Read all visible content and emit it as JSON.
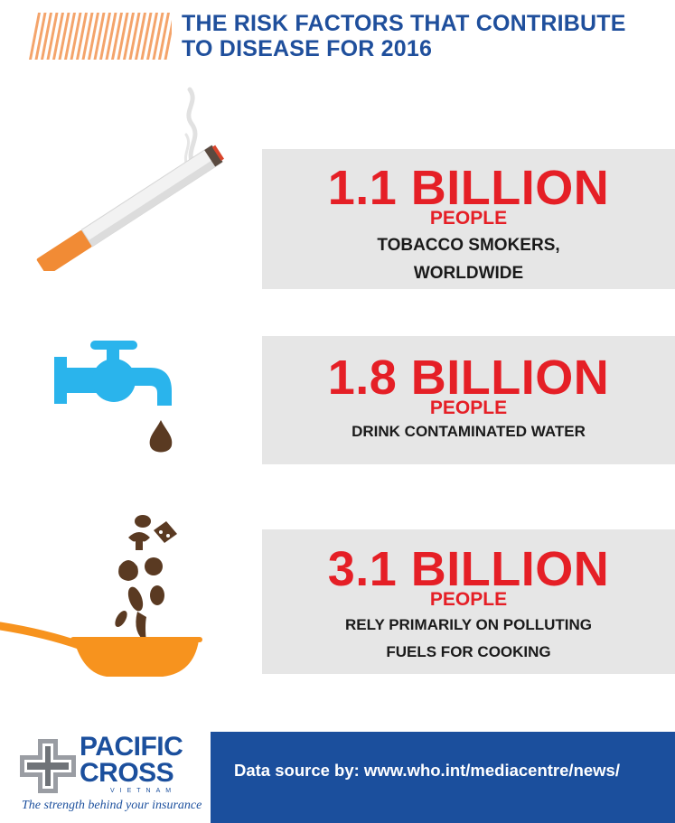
{
  "title": {
    "line1": "THE RISK FACTORS THAT CONTRIBUTE",
    "line2": "TO DISEASE FOR 2016"
  },
  "colors": {
    "title_blue": "#1f4f9c",
    "stat_red": "#e51f26",
    "box_gray": "#e6e6e6",
    "stripe_orange": "#f4a46b",
    "faucet_blue": "#2ab4ec",
    "drop_brown": "#5a3a22",
    "pan_orange": "#f7931e",
    "footer_blue": "#1b4f9d"
  },
  "stats": [
    {
      "icon": "cigarette-icon",
      "value": "1.1 BILLION",
      "unit": "PEOPLE",
      "desc_line1": "TOBACCO SMOKERS,",
      "desc_line2": "WORLDWIDE"
    },
    {
      "icon": "faucet-icon",
      "value": "1.8 BILLION",
      "unit": "PEOPLE",
      "desc_line1": "DRINK CONTAMINATED WATER"
    },
    {
      "icon": "frying-pan-icon",
      "value": "3.1 BILLION",
      "unit": "PEOPLE",
      "desc_line1": "RELY PRIMARILY ON POLLUTING",
      "desc_line2": "FUELS FOR COOKING"
    }
  ],
  "logo": {
    "name_line1": "PACIFIC",
    "name_line2": "CROSS",
    "country": "VIETNAM",
    "tagline": "The strength behind your insurance"
  },
  "footer": {
    "source": "Data source by: www.who.int/mediacentre/news/"
  }
}
